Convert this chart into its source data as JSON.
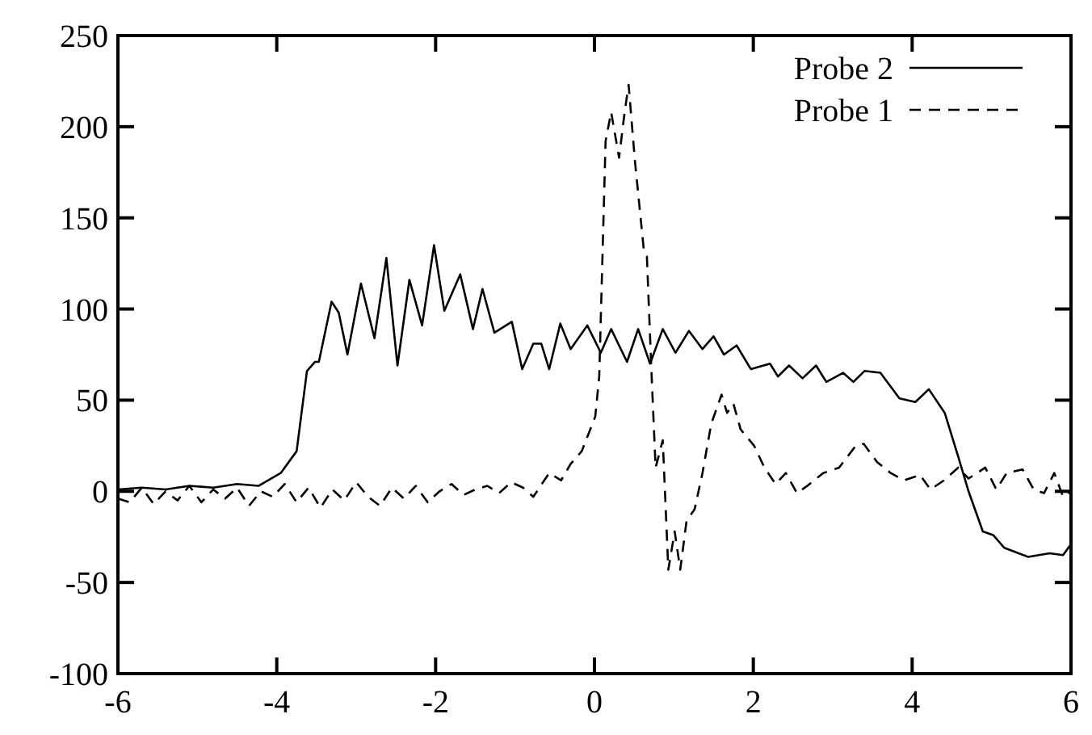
{
  "chart_data": {
    "type": "line",
    "xlim": [
      -6,
      6
    ],
    "xticks": [
      -6,
      -4,
      -2,
      0,
      2,
      4,
      6
    ],
    "ylim": [
      -100,
      250
    ],
    "yticks": [
      -100,
      -50,
      0,
      50,
      100,
      150,
      200,
      250
    ],
    "grid": false,
    "legend": "top right",
    "marker": "none",
    "series": [
      {
        "name": "Probe 2",
        "color": "#000000",
        "line_style": "solid",
        "x": [
          -6,
          -5.7,
          -5.4,
          -5.1,
          -4.8,
          -4.5,
          -4.23,
          -3.95,
          -3.75,
          -3.62,
          -3.52,
          -3.47,
          -3.31,
          -3.22,
          -3.11,
          -2.94,
          -2.77,
          -2.62,
          -2.48,
          -2.33,
          -2.17,
          -2.02,
          -1.89,
          -1.69,
          -1.53,
          -1.41,
          -1.26,
          -1.04,
          -0.91,
          -0.77,
          -0.67,
          -0.57,
          -0.43,
          -0.3,
          -0.09,
          0.08,
          0.21,
          0.41,
          0.55,
          0.7,
          0.86,
          1.02,
          1.19,
          1.36,
          1.5,
          1.63,
          1.79,
          1.97,
          2.21,
          2.31,
          2.45,
          2.62,
          2.79,
          2.92,
          3.13,
          3.26,
          3.4,
          3.6,
          3.84,
          4.04,
          4.21,
          4.41,
          4.58,
          4.71,
          4.89,
          5.02,
          5.16,
          5.46,
          5.73,
          5.9,
          6
        ],
        "values": [
          1,
          2,
          1,
          3,
          2,
          4,
          3,
          10,
          22,
          66,
          71,
          71,
          104,
          98,
          75,
          114,
          84,
          128,
          69,
          116,
          91,
          135,
          99,
          119,
          89,
          111,
          87,
          93,
          67,
          81,
          81,
          67,
          92,
          78,
          91,
          76,
          89,
          71,
          89,
          70,
          89,
          76,
          88,
          78,
          85,
          75,
          80,
          67,
          70,
          63,
          69,
          62,
          69,
          60,
          65,
          60,
          66,
          65,
          51,
          49,
          56,
          43,
          19,
          0,
          -22,
          -24,
          -31,
          -36,
          -34,
          -35,
          -29
        ]
      },
      {
        "name": "Probe 1",
        "color": "#000000",
        "line_style": "dashed",
        "x": [
          -6,
          -5.85,
          -5.7,
          -5.55,
          -5.4,
          -5.25,
          -5.1,
          -4.95,
          -4.8,
          -4.65,
          -4.5,
          -4.35,
          -4.2,
          -4.05,
          -3.9,
          -3.75,
          -3.6,
          -3.45,
          -3.3,
          -3.15,
          -3,
          -2.85,
          -2.7,
          -2.55,
          -2.4,
          -2.25,
          -2.1,
          -1.95,
          -1.8,
          -1.65,
          -1.5,
          -1.35,
          -1.2,
          -1.05,
          -0.9,
          -0.77,
          -0.57,
          -0.42,
          -0.3,
          -0.16,
          0.01,
          0.06,
          0.14,
          0.21,
          0.31,
          0.38,
          0.43,
          0.51,
          0.62,
          0.66,
          0.72,
          0.77,
          0.86,
          0.93,
          1.01,
          1.08,
          1.16,
          1.26,
          1.36,
          1.47,
          1.6,
          1.67,
          1.75,
          1.84,
          2.01,
          2.14,
          2.28,
          2.41,
          2.55,
          2.68,
          2.88,
          3.08,
          3.29,
          3.39,
          3.56,
          3.73,
          3.9,
          4.1,
          4.23,
          4.4,
          4.58,
          4.71,
          4.92,
          5.06,
          5.19,
          5.39,
          5.53,
          5.66,
          5.79,
          5.9,
          6
        ],
        "values": [
          -4,
          -6,
          2,
          -7,
          0,
          -5,
          3,
          -6,
          1,
          -4,
          2,
          -8,
          0,
          -3,
          4,
          -6,
          2,
          -9,
          1,
          -5,
          5,
          -3,
          -8,
          2,
          -4,
          3,
          -6,
          0,
          4,
          -2,
          1,
          3,
          -1,
          5,
          2,
          -3,
          10,
          6,
          15,
          22,
          41,
          63,
          192,
          208,
          183,
          208,
          223,
          181,
          133,
          129,
          63,
          13,
          28,
          -43,
          -22,
          -43,
          -16,
          -10,
          10,
          37,
          53,
          43,
          48,
          34,
          25,
          13,
          4,
          10,
          -1,
          3,
          10,
          13,
          25,
          26,
          16,
          10,
          6,
          9,
          1,
          6,
          13,
          7,
          13,
          1,
          10,
          12,
          1,
          -1,
          10,
          -3,
          0
        ]
      }
    ]
  }
}
